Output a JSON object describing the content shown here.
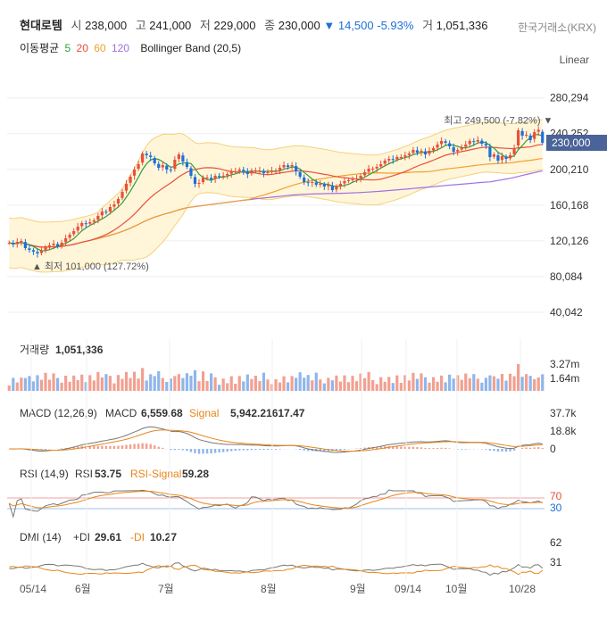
{
  "header": {
    "name": "현대로템",
    "open_label": "시",
    "open": "238,000",
    "high_label": "고",
    "high": "241,000",
    "low_label": "저",
    "low": "229,000",
    "close_label": "종",
    "close": "230,000",
    "change_arrow": "▼",
    "change": "14,500",
    "change_pct": "-5.93%",
    "volume_label": "거",
    "volume": "1,051,336",
    "exchange": "한국거래소(KRX)"
  },
  "indicators": {
    "ma_label": "이동평균",
    "ma_periods": [
      "5",
      "20",
      "60",
      "120"
    ],
    "ma_colors": [
      "#2e9e3e",
      "#e8503a",
      "#f0a030",
      "#a070e0"
    ],
    "bollinger_label": "Bollinger Band (20,5)"
  },
  "scale_mode": "Linear",
  "price_axis": {
    "ticks": [
      "280,294",
      "240,252",
      "200,210",
      "160,168",
      "120,126",
      "80,084",
      "40,042"
    ],
    "current_price_tag": "230,000"
  },
  "annotations": {
    "high": "최고 249,500 (-7.82%) ▼",
    "low": "▲ 최저 101,000 (127.72%)"
  },
  "volume_panel": {
    "label": "거래량",
    "value": "1,051,336",
    "ticks": [
      "3.27m",
      "1.64m"
    ]
  },
  "macd_panel": {
    "label": "MACD (12,26,9)",
    "macd_label": "MACD",
    "macd_value": "6,559.68",
    "signal_label": "Signal",
    "signal_value": "5,942.21617.47",
    "ticks": [
      "37.7k",
      "18.8k",
      "0"
    ]
  },
  "rsi_panel": {
    "label": "RSI (14,9)",
    "rsi_label": "RSI",
    "rsi_value": "53.75",
    "signal_label": "RSI-Signal",
    "signal_value": "59.28",
    "ticks": [
      "70",
      "30"
    ]
  },
  "dmi_panel": {
    "label": "DMI (14)",
    "pdi_label": "+DI",
    "pdi_value": "29.61",
    "mdi_label": "-DI",
    "mdi_value": "10.27",
    "ticks": [
      "62",
      "31"
    ]
  },
  "x_axis": {
    "labels": [
      "05/14",
      "6월",
      "7월",
      "8월",
      "9월",
      "09/14",
      "10월",
      "10/28"
    ]
  },
  "colors": {
    "up": "#e8503a",
    "down": "#1e6fd9",
    "band_fill": "#fff5d9",
    "band_line": "#f3d27a",
    "tag_bg": "#4a6398"
  },
  "chart_data": {
    "type": "candlestick",
    "ylim": [
      20000,
      300000
    ],
    "price_ticks": [
      280294,
      240252,
      200210,
      160168,
      120126,
      80084,
      40042
    ],
    "x_labels": [
      "05/14",
      "6월",
      "7월",
      "8월",
      "9월",
      "09/14",
      "10월",
      "10/28"
    ],
    "closes": [
      118000,
      116000,
      119000,
      120000,
      112000,
      110000,
      108000,
      106000,
      109000,
      113000,
      115000,
      117000,
      114000,
      118000,
      123000,
      127000,
      131000,
      136000,
      140000,
      139000,
      141000,
      143000,
      148000,
      153000,
      152000,
      158000,
      161000,
      167000,
      175000,
      184000,
      192000,
      200000,
      206000,
      218000,
      216000,
      214000,
      207000,
      202000,
      205000,
      200000,
      199000,
      211000,
      217000,
      209000,
      203000,
      193000,
      184000,
      185000,
      191000,
      191000,
      189000,
      193000,
      192000,
      193000,
      195000,
      198000,
      198000,
      200000,
      198000,
      195000,
      199000,
      199000,
      199000,
      196000,
      197000,
      199000,
      199000,
      202000,
      205000,
      203000,
      205000,
      198000,
      192000,
      186000,
      185000,
      186000,
      183000,
      184000,
      181000,
      183000,
      177000,
      181000,
      184000,
      187000,
      188000,
      189000,
      190000,
      193000,
      197000,
      201000,
      201000,
      203000,
      206000,
      210000,
      212000,
      211000,
      214000,
      214000,
      216000,
      218000,
      222000,
      219000,
      221000,
      217000,
      221000,
      224000,
      228000,
      232000,
      230000,
      226000,
      220000,
      222000,
      225000,
      228000,
      232000,
      231000,
      233000,
      229000,
      227000,
      214000,
      217000,
      210000,
      215000,
      212000,
      216000,
      224000,
      244000,
      238000,
      239000,
      233000,
      242000,
      244500,
      230000
    ],
    "ma_series": [
      {
        "period": 5,
        "color": "#2e9e3e"
      },
      {
        "period": 20,
        "color": "#e8503a"
      },
      {
        "period": 60,
        "color": "#f0a030"
      },
      {
        "period": 120,
        "color": "#a070e0"
      }
    ],
    "annotations": {
      "high": 249500,
      "low": 101000,
      "current": 230000
    }
  }
}
